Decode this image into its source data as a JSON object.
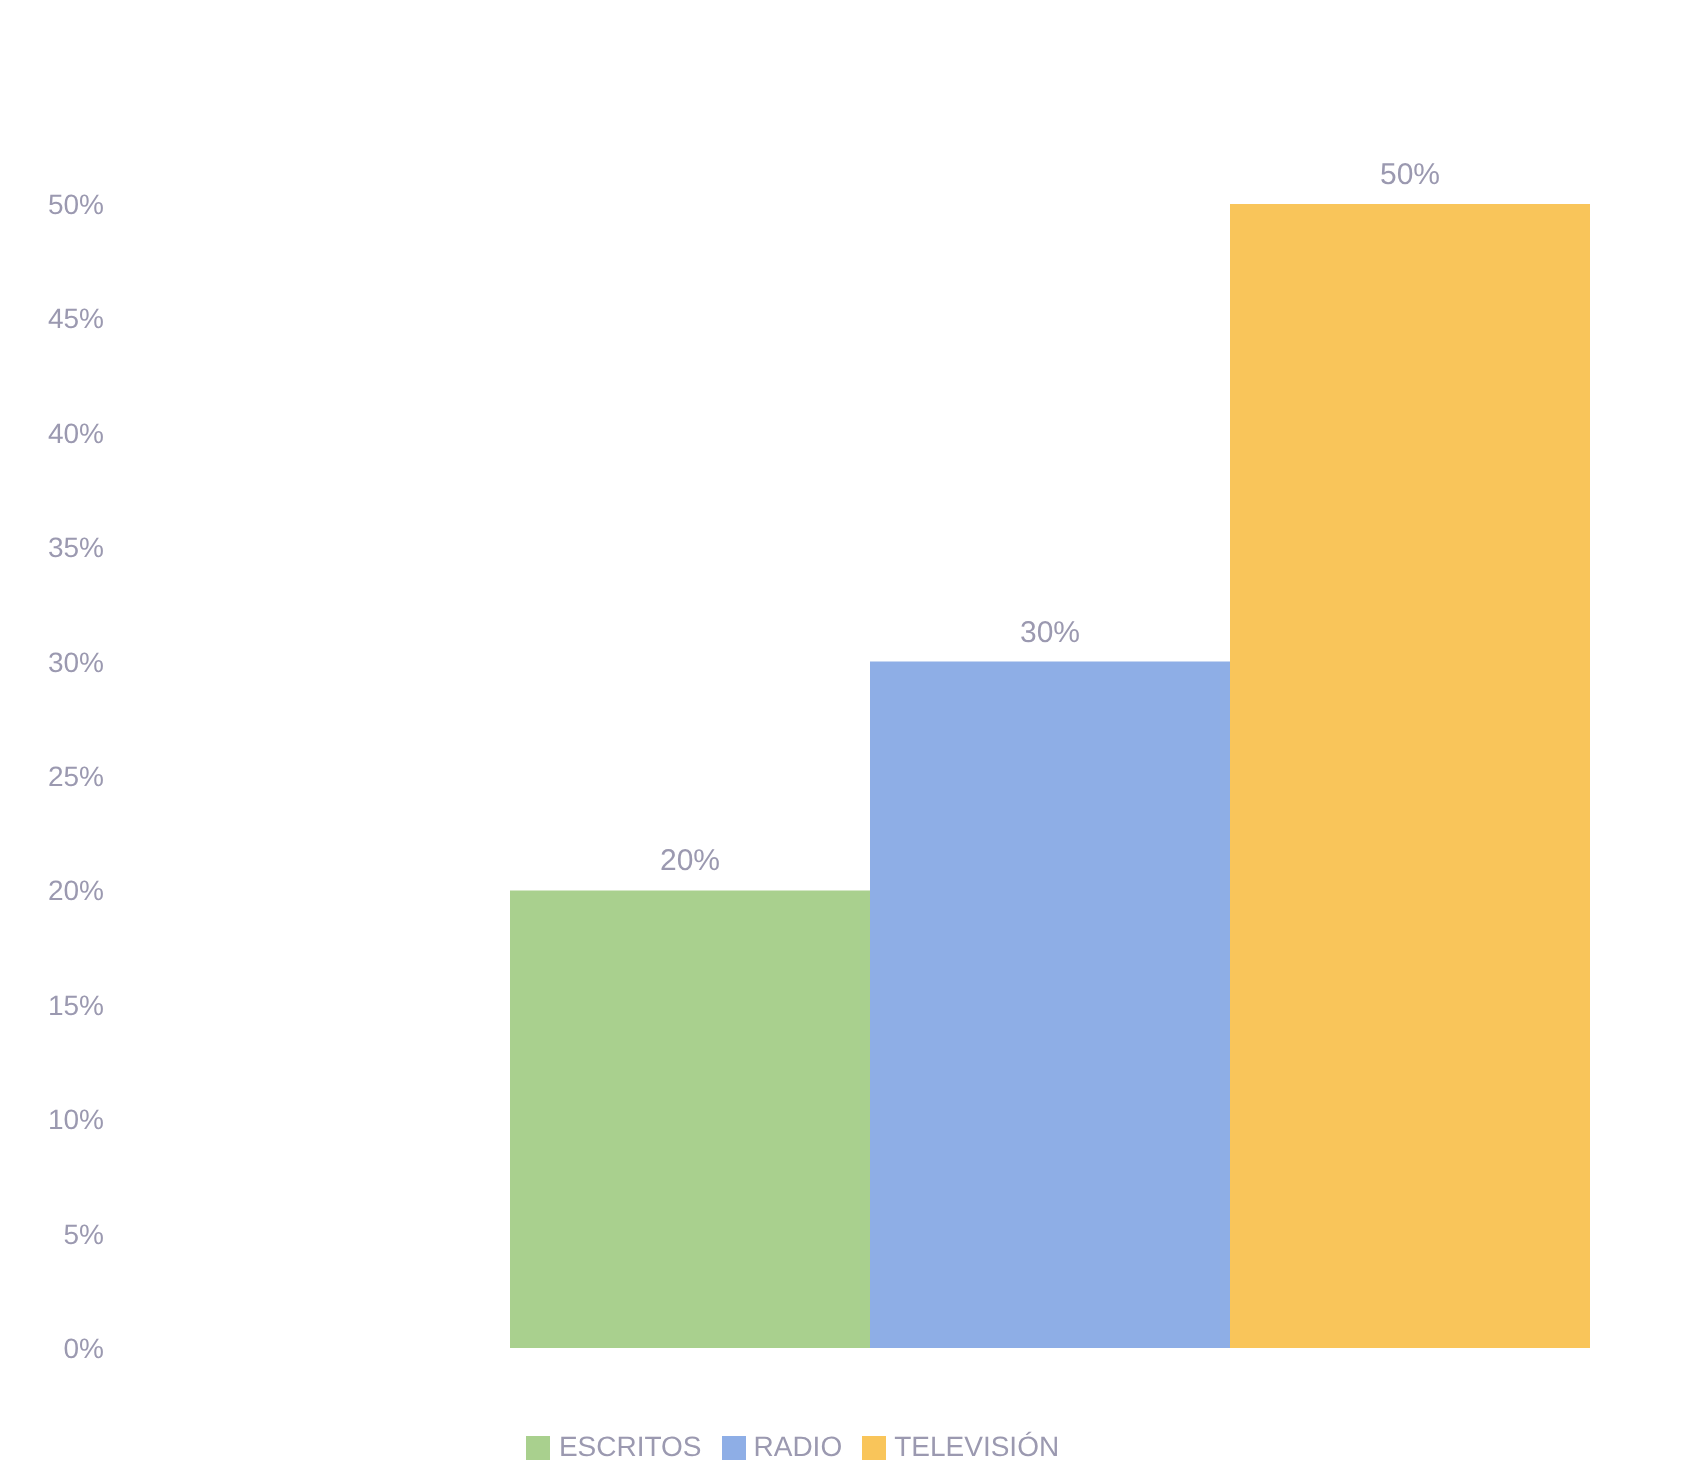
{
  "chart_data": {
    "type": "bar",
    "categories": [
      null
    ],
    "series": [
      {
        "name": "ESCRITOS",
        "color": "#a9d08e",
        "values": [
          20
        ],
        "value_labels": [
          "20%"
        ]
      },
      {
        "name": "RADIO",
        "color": "#8eaee6",
        "values": [
          30
        ],
        "value_labels": [
          "30%"
        ]
      },
      {
        "name": "TELEVISIÓN",
        "color": "#f9c55a",
        "values": [
          50
        ],
        "value_labels": [
          "50%"
        ]
      }
    ],
    "ylim": [
      0,
      50
    ],
    "yticks": [
      {
        "value": 0,
        "label": "0%"
      },
      {
        "value": 5,
        "label": "5%"
      },
      {
        "value": 10,
        "label": "10%"
      },
      {
        "value": 15,
        "label": "15%"
      },
      {
        "value": 20,
        "label": "20%"
      },
      {
        "value": 25,
        "label": "25%"
      },
      {
        "value": 30,
        "label": "30%"
      },
      {
        "value": 35,
        "label": "35%"
      },
      {
        "value": 40,
        "label": "40%"
      },
      {
        "value": 45,
        "label": "45%"
      },
      {
        "value": 50,
        "label": "50%"
      }
    ],
    "grid": false,
    "legend": "bottom"
  }
}
